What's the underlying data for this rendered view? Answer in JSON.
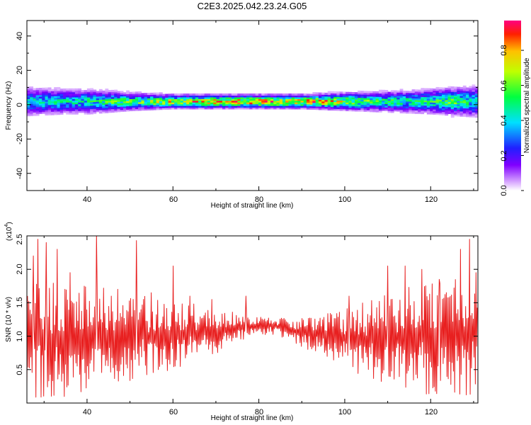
{
  "figure": {
    "title": "C2E3.2025.042.23.24.G05"
  },
  "colors": {
    "snr_line": "#e82020",
    "axis": "#000000",
    "background": "#ffffff"
  },
  "chart_data": [
    {
      "type": "heatmap",
      "xlabel": "Height of straight line (km)",
      "ylabel": "Frequency (Hz)",
      "xlim": [
        26,
        131
      ],
      "ylim": [
        -50,
        49
      ],
      "x_ticks": [
        "40",
        "60",
        "80",
        "100",
        "120"
      ],
      "y_ticks": [
        "40",
        "20",
        "0",
        "-20",
        "-40"
      ],
      "band_center_hz": 2,
      "band_halfwidth_hz": [
        [
          26,
          7
        ],
        [
          35,
          6
        ],
        [
          40,
          6
        ],
        [
          50,
          4
        ],
        [
          60,
          3
        ],
        [
          70,
          3
        ],
        [
          80,
          3
        ],
        [
          90,
          3
        ],
        [
          100,
          4
        ],
        [
          110,
          5
        ],
        [
          120,
          6
        ],
        [
          131,
          8
        ]
      ],
      "peak_amplitude": [
        [
          26,
          0.45
        ],
        [
          40,
          0.5
        ],
        [
          55,
          0.7
        ],
        [
          65,
          0.85
        ],
        [
          75,
          0.9
        ],
        [
          85,
          0.9
        ],
        [
          95,
          0.85
        ],
        [
          105,
          0.6
        ],
        [
          115,
          0.5
        ],
        [
          125,
          0.6
        ],
        [
          131,
          0.45
        ]
      ],
      "colorbar": {
        "label": "Normalized spectral amplitude",
        "ticks": [
          "0.0",
          "0.2",
          "0.4",
          "0.6",
          "0.8"
        ],
        "range": [
          0,
          0.97
        ]
      }
    },
    {
      "type": "line",
      "xlabel": "Height of straight line (km)",
      "ylabel": "SNR (10 * v/v)",
      "multiplier_label": "(x10",
      "multiplier_exp": "4",
      "multiplier_close": ")",
      "xlim": [
        26,
        131
      ],
      "ylim": [
        0,
        2.5
      ],
      "x_ticks": [
        "40",
        "60",
        "80",
        "100",
        "120"
      ],
      "y_ticks": [
        "0.5",
        "1.0",
        "1.5",
        "2.0",
        "2.5"
      ],
      "series": [
        {
          "sample_step_km": 0.15,
          "envelope": [
            [
              26,
              0.95,
              0.9
            ],
            [
              35,
              0.95,
              0.85
            ],
            [
              45,
              1.0,
              0.75
            ],
            [
              55,
              1.0,
              0.6
            ],
            [
              65,
              1.05,
              0.45
            ],
            [
              72,
              1.1,
              0.3
            ],
            [
              78,
              1.15,
              0.15
            ],
            [
              84,
              1.15,
              0.12
            ],
            [
              90,
              1.05,
              0.22
            ],
            [
              97,
              1.0,
              0.35
            ],
            [
              105,
              0.95,
              0.6
            ],
            [
              115,
              0.95,
              0.8
            ],
            [
              125,
              1.0,
              0.9
            ],
            [
              131,
              1.0,
              0.9
            ]
          ],
          "spikes": [
            [
              27.5,
              2.2
            ],
            [
              28.5,
              2.45
            ],
            [
              30.5,
              2.4
            ],
            [
              33,
              2.3
            ],
            [
              36,
              1.95
            ],
            [
              42.2,
              2.52
            ],
            [
              51.5,
              2.43
            ],
            [
              55,
              1.65
            ],
            [
              60,
              2.05
            ],
            [
              64,
              1.6
            ],
            [
              69,
              1.55
            ],
            [
              77,
              1.6
            ],
            [
              101,
              1.6
            ],
            [
              110,
              2.05
            ],
            [
              114,
              2.05
            ],
            [
              118,
              2.0
            ],
            [
              122,
              1.85
            ],
            [
              127,
              2.3
            ],
            [
              129,
              2.45
            ],
            [
              130.5,
              1.95
            ]
          ]
        }
      ]
    }
  ]
}
